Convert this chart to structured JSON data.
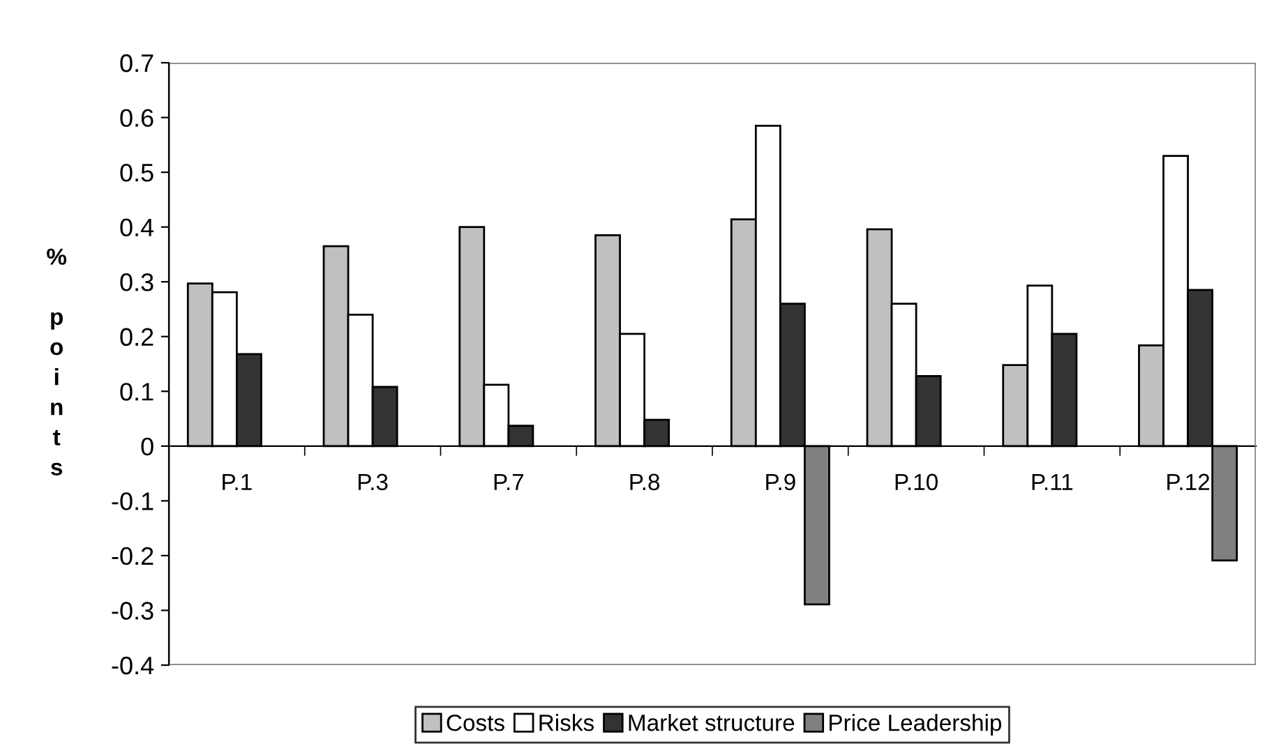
{
  "chart_data": {
    "type": "bar",
    "ylabel": "% points",
    "categories": [
      "P.1",
      "P.3",
      "P.7",
      "P.8",
      "P.9",
      "P.10",
      "P.11",
      "P.12"
    ],
    "series": [
      {
        "name": "Costs",
        "color": "#c0c0c0",
        "values": [
          0.297,
          0.365,
          0.4,
          0.385,
          0.414,
          0.396,
          0.148,
          0.184
        ]
      },
      {
        "name": "Risks",
        "color": "#ffffff",
        "values": [
          0.281,
          0.24,
          0.112,
          0.205,
          0.585,
          0.26,
          0.293,
          0.53
        ]
      },
      {
        "name": "Market structure",
        "color": "#333333",
        "values": [
          0.168,
          0.108,
          0.037,
          0.048,
          0.26,
          0.128,
          0.205,
          0.285
        ]
      },
      {
        "name": "Price Leadership",
        "color": "#808080",
        "values": [
          null,
          null,
          null,
          null,
          -0.289,
          null,
          null,
          -0.209
        ]
      }
    ],
    "ylim": [
      -0.4,
      0.7
    ],
    "yticks": [
      -0.4,
      -0.3,
      -0.2,
      -0.1,
      0,
      0.1,
      0.2,
      0.3,
      0.4,
      0.5,
      0.6,
      0.7
    ],
    "grid": false,
    "legend": "bottom"
  }
}
